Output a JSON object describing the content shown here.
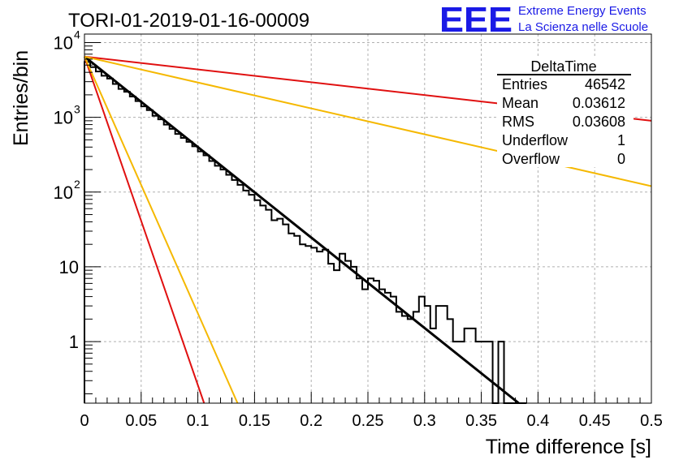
{
  "chart_data": {
    "type": "histogram",
    "title": "TORI-01-2019-01-16-00009",
    "xlabel": "Time difference [s]",
    "ylabel": "Entries/bin",
    "logo": {
      "text": "EEE",
      "line1": "Extreme Energy Events",
      "line2": "La Scienza nelle Scuole",
      "color": "#1a1ae6"
    },
    "xlim": [
      0,
      0.5
    ],
    "ylim": [
      0.15,
      13000
    ],
    "yscale": "log",
    "grid": true,
    "x_ticks": [
      "0",
      "0.05",
      "0.1",
      "0.15",
      "0.2",
      "0.25",
      "0.3",
      "0.35",
      "0.4",
      "0.45",
      "0.5"
    ],
    "y_ticks": [
      {
        "value": 1,
        "label": "1"
      },
      {
        "value": 10,
        "label": "10"
      },
      {
        "value": 100,
        "label": "10",
        "exp": "2"
      },
      {
        "value": 1000,
        "label": "10",
        "exp": "3"
      },
      {
        "value": 10000,
        "label": "10",
        "exp": "4"
      }
    ],
    "stats": {
      "title": "DeltaTime",
      "rows": [
        {
          "label": "Entries",
          "value": "46542"
        },
        {
          "label": "Mean",
          "value": "0.03612"
        },
        {
          "label": "RMS",
          "value": "0.03608"
        },
        {
          "label": "Underflow",
          "value": "1"
        },
        {
          "label": "Overflow",
          "value": "0"
        }
      ]
    },
    "histogram": {
      "bin_width": 0.005,
      "x_start": 0,
      "counts": [
        5500,
        4700,
        4100,
        3600,
        3300,
        2800,
        2400,
        2200,
        1900,
        1650,
        1400,
        1250,
        1050,
        940,
        800,
        700,
        600,
        530,
        470,
        410,
        350,
        310,
        260,
        225,
        200,
        170,
        145,
        125,
        105,
        92,
        78,
        66,
        58,
        42,
        44,
        37,
        28,
        26,
        20,
        19,
        18,
        16,
        17,
        11,
        9,
        15,
        12,
        10,
        7,
        5,
        7,
        6.5,
        5,
        4.5,
        4,
        2.5,
        2.2,
        2,
        2.5,
        4,
        3,
        1.5,
        3,
        3,
        2,
        1,
        1,
        1.5,
        1.5,
        1,
        1,
        1,
        0.1,
        1,
        0.1,
        0.1,
        0.1,
        0.1
      ]
    },
    "fit_lines": [
      {
        "name": "",
        "color": "#000000",
        "x": [
          0,
          0.383
        ],
        "y": [
          6500,
          0.15
        ]
      },
      {
        "name": "",
        "color": "#e01010",
        "x": [
          0,
          0.5
        ],
        "y": [
          6500,
          900
        ]
      },
      {
        "name": "",
        "color": "#f5b800",
        "x": [
          0,
          0.5
        ],
        "y": [
          6500,
          120
        ]
      },
      {
        "name": "",
        "color": "#e01010",
        "x": [
          0,
          0.1055
        ],
        "y": [
          6500,
          0.15
        ]
      },
      {
        "name": "",
        "color": "#f5b800",
        "x": [
          0,
          0.135
        ],
        "y": [
          6500,
          0.15
        ]
      }
    ]
  }
}
